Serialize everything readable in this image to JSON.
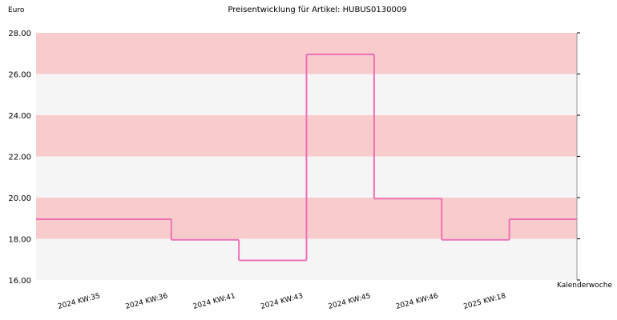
{
  "chart_data": {
    "type": "step",
    "title": "Preisentwicklung für Artikel: HUBUS0130009",
    "ylabel": "Euro",
    "xlabel": "Kalenderwoche",
    "categories": [
      "2024 KW:35",
      "2024 KW:36",
      "2024 KW:41",
      "2024 KW:43",
      "2024 KW:45",
      "2024 KW:46",
      "2025 KW:18"
    ],
    "series": [
      {
        "color": "#f070b8",
        "values": [
          18.95,
          17.95,
          16.95,
          26.95,
          19.95,
          17.95,
          18.95
        ]
      }
    ],
    "ylim": [
      16,
      28
    ],
    "yticks": [
      {
        "value": 16,
        "label": "16.00"
      },
      {
        "value": 18,
        "label": "18.00"
      },
      {
        "value": 20,
        "label": "20.00"
      },
      {
        "value": 22,
        "label": "22.00"
      },
      {
        "value": 24,
        "label": "24.00"
      },
      {
        "value": 26,
        "label": "26.00"
      },
      {
        "value": 28,
        "label": "28.00"
      }
    ],
    "band_colors": [
      "#f8cccc",
      "#f5f5f5"
    ]
  }
}
